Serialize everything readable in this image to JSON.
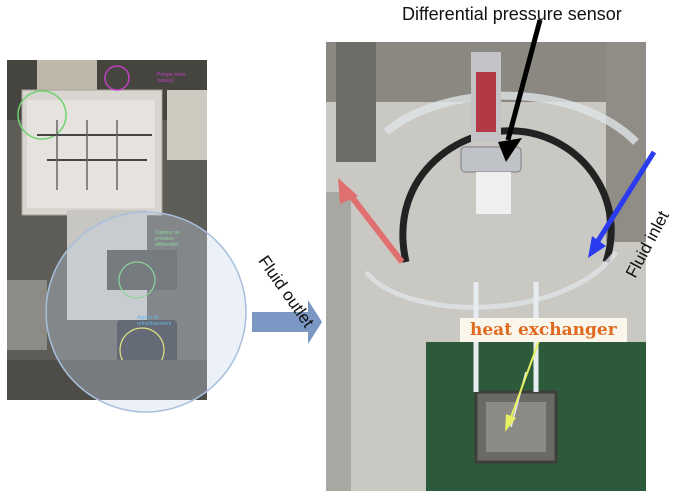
{
  "labels": {
    "differential_pressure_sensor": "Differential pressure sensor",
    "fluid_outlet": "Fluid outlet",
    "fluid_inlet": "Fluid inlet",
    "heat_exchanger": "heat exchanger"
  },
  "left_photo_annotations": {
    "pump": "Pompe et/ou",
    "vase": "Vase(s)",
    "sensor": "Capteur de pression différentiel",
    "exchanger": "Apprêt de refroidissement"
  },
  "colors": {
    "heat_exchanger_text": "#e06a1e",
    "outlet_arrow": "#e07070",
    "inlet_arrow": "#2a3bf0",
    "sensor_arrow": "#000000",
    "transition_arrow": "#7b97c4",
    "magnifier_circle": "#a8bfdc",
    "annotation_green": "#6fd36f",
    "annotation_magenta": "#c040c0",
    "annotation_blue": "#3aa0e0",
    "annotation_yellow": "#e6e64a"
  }
}
